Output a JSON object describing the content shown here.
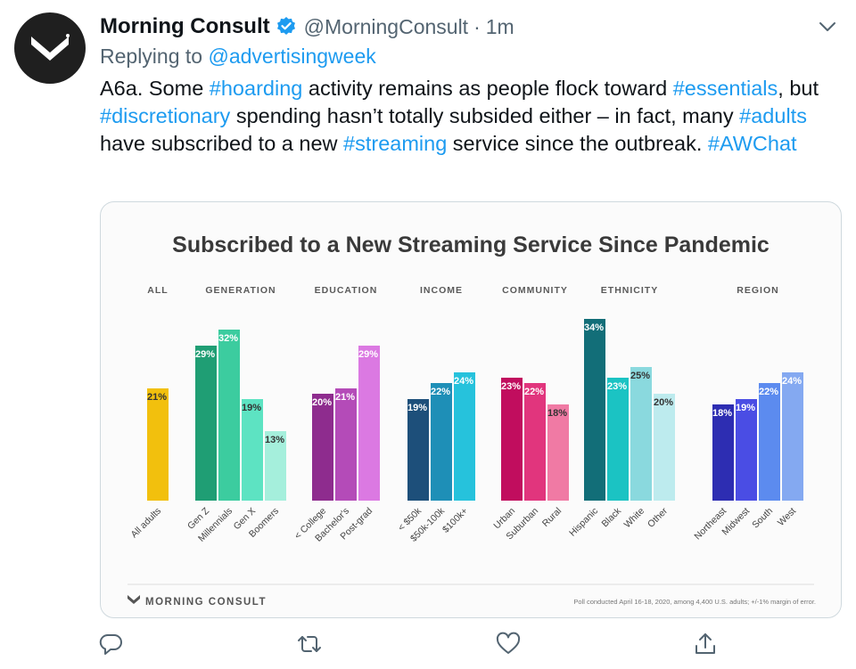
{
  "tweet": {
    "display_name": "Morning Consult",
    "handle": "@MorningConsult",
    "separator": "·",
    "time": "1m",
    "replying_prefix": "Replying to ",
    "replying_to": "@advertisingweek",
    "text_segments": [
      {
        "t": "A6a. Some ",
        "tag": false
      },
      {
        "t": "#hoarding",
        "tag": true
      },
      {
        "t": " activity remains as people flock toward ",
        "tag": false
      },
      {
        "t": "#essentials",
        "tag": true
      },
      {
        "t": ", but ",
        "tag": false
      },
      {
        "t": "#discretionary",
        "tag": true
      },
      {
        "t": " spending hasn’t totally subsided either – in fact, many ",
        "tag": false
      },
      {
        "t": "#adults",
        "tag": true
      },
      {
        "t": " have subscribed to a new ",
        "tag": false
      },
      {
        "t": "#streaming",
        "tag": true
      },
      {
        "t": " service since the outbreak. ",
        "tag": false
      },
      {
        "t": "#AWChat",
        "tag": true
      }
    ]
  },
  "colors": {
    "link": "#1d9bf0",
    "muted": "#536471",
    "verified": "#1d9bf0"
  },
  "icons": [
    "reply-icon",
    "retweet-icon",
    "like-icon",
    "share-icon",
    "chevron-down-icon",
    "verified-badge-icon"
  ],
  "chart_data": {
    "type": "bar",
    "title": "Subscribed to a New Streaming Service Since Pandemic",
    "unit": "%",
    "ylim": [
      0,
      40
    ],
    "groups": [
      {
        "label": "ALL",
        "bars": [
          {
            "category": "All adults",
            "value": 21,
            "color": "#f2c00d"
          }
        ]
      },
      {
        "label": "GENERATION",
        "bars": [
          {
            "category": "Gen Z",
            "value": 29,
            "color": "#1f9e74"
          },
          {
            "category": "Millennials",
            "value": 32,
            "color": "#3ccc9f"
          },
          {
            "category": "Gen X",
            "value": 19,
            "color": "#5de3c2"
          },
          {
            "category": "Boomers",
            "value": 13,
            "color": "#a5efdc"
          }
        ]
      },
      {
        "label": "EDUCATION",
        "bars": [
          {
            "category": "< College",
            "value": 20,
            "color": "#8e2c8e"
          },
          {
            "category": "Bachelor's",
            "value": 21,
            "color": "#b44bb8"
          },
          {
            "category": "Post-grad",
            "value": 29,
            "color": "#db79e2"
          }
        ]
      },
      {
        "label": "INCOME",
        "bars": [
          {
            "category": "< $50k",
            "value": 19,
            "color": "#1d4f7a"
          },
          {
            "category": "$50k-100k",
            "value": 22,
            "color": "#1e8fb7"
          },
          {
            "category": "$100k+",
            "value": 24,
            "color": "#26c2dc"
          }
        ]
      },
      {
        "label": "COMMUNITY",
        "bars": [
          {
            "category": "Urban",
            "value": 23,
            "color": "#c10d5e"
          },
          {
            "category": "Suburban",
            "value": 22,
            "color": "#e1357d"
          },
          {
            "category": "Rural",
            "value": 18,
            "color": "#f07aa4"
          }
        ]
      },
      {
        "label": "ETHNICITY",
        "bars": [
          {
            "category": "Hispanic",
            "value": 34,
            "color": "#126e78"
          },
          {
            "category": "Black",
            "value": 23,
            "color": "#1bc3c3"
          },
          {
            "category": "White",
            "value": 25,
            "color": "#8ad9de"
          },
          {
            "category": "Other",
            "value": 20,
            "color": "#bdebee"
          }
        ]
      },
      {
        "label": "REGION",
        "bars": [
          {
            "category": "Northeast",
            "value": 18,
            "color": "#2d2db2"
          },
          {
            "category": "Midwest",
            "value": 19,
            "color": "#4a4de4"
          },
          {
            "category": "South",
            "value": 22,
            "color": "#5c8bef"
          },
          {
            "category": "West",
            "value": 24,
            "color": "#84a9f1"
          }
        ]
      }
    ],
    "footer_brand": "MORNING CONSULT",
    "footnote": "Poll conducted April 16-18, 2020, among 4,400 U.S. adults; +/-1% margin of error."
  }
}
